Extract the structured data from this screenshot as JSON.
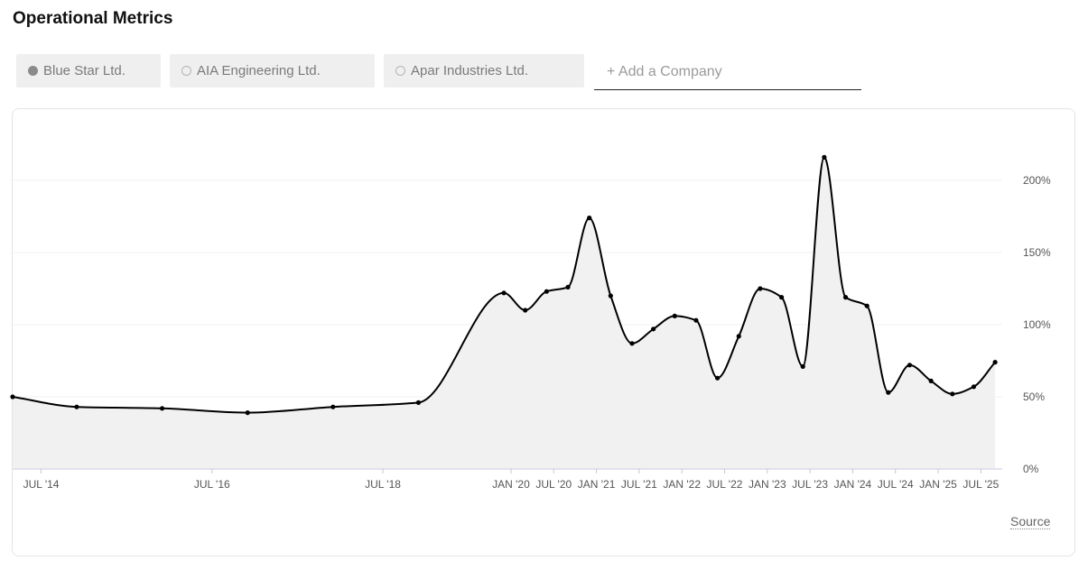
{
  "header": {
    "title": "Operational Metrics"
  },
  "companies": [
    {
      "label": "Blue Star Ltd.",
      "active": true
    },
    {
      "label": "AIA Engineering Ltd.",
      "active": false
    },
    {
      "label": "Apar Industries Ltd.",
      "active": false
    }
  ],
  "add_company": {
    "placeholder": "+ Add a Company"
  },
  "source_label": "Source",
  "colors": {
    "line": "#000000",
    "area": "#f1f1f1",
    "grid": "#f0f0f0",
    "axis_text": "#555555"
  },
  "chart_data": {
    "type": "area",
    "title": "",
    "xlabel": "",
    "ylabel": "",
    "ylim": [
      0,
      220
    ],
    "y_ticks": [
      0,
      50,
      100,
      150,
      200
    ],
    "y_tick_labels": [
      "0%",
      "50%",
      "100%",
      "150%",
      "200%"
    ],
    "y_axis_position": "right",
    "grid": true,
    "x_tick_labels": [
      {
        "label": "JUL '14",
        "x": "2014-07"
      },
      {
        "label": "JUL '16",
        "x": "2016-07"
      },
      {
        "label": "JUL '18",
        "x": "2018-07"
      },
      {
        "label": "JAN '20",
        "x": "2020-01"
      },
      {
        "label": "JUL '20",
        "x": "2020-07"
      },
      {
        "label": "JAN '21",
        "x": "2021-01"
      },
      {
        "label": "JUL '21",
        "x": "2021-07"
      },
      {
        "label": "JAN '22",
        "x": "2022-01"
      },
      {
        "label": "JUL '22",
        "x": "2022-07"
      },
      {
        "label": "JAN '23",
        "x": "2023-01"
      },
      {
        "label": "JUL '23",
        "x": "2023-07"
      },
      {
        "label": "JAN '24",
        "x": "2024-01"
      },
      {
        "label": "JUL '24",
        "x": "2024-07"
      },
      {
        "label": "JAN '25",
        "x": "2025-01"
      },
      {
        "label": "JUL '25",
        "x": "2025-07"
      }
    ],
    "x": [
      "2014-03",
      "2014-12",
      "2015-12",
      "2016-12",
      "2017-12",
      "2018-12",
      "2019-12",
      "2020-03",
      "2020-06",
      "2020-09",
      "2020-12",
      "2021-03",
      "2021-06",
      "2021-09",
      "2021-12",
      "2022-03",
      "2022-06",
      "2022-09",
      "2022-12",
      "2023-03",
      "2023-06",
      "2023-09",
      "2023-12",
      "2024-03",
      "2024-06",
      "2024-09",
      "2024-12",
      "2025-03",
      "2025-06",
      "2025-09"
    ],
    "series": [
      {
        "values": [
          50,
          43,
          42,
          39,
          43,
          46,
          122,
          110,
          123,
          126,
          174,
          120,
          87,
          97,
          106,
          103,
          63,
          92,
          125,
          119,
          71,
          216,
          119,
          113,
          53,
          72,
          61,
          52,
          57,
          74
        ]
      }
    ]
  }
}
